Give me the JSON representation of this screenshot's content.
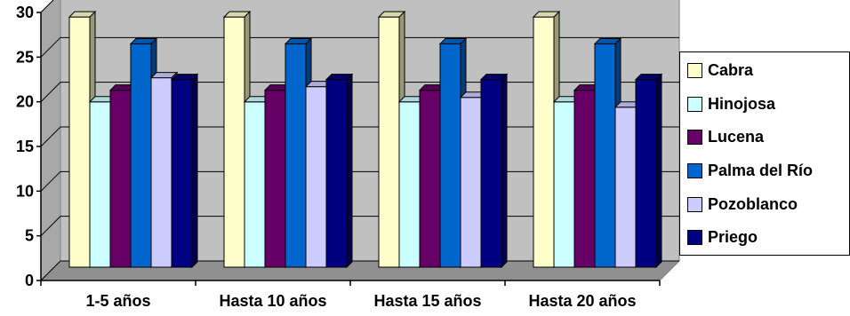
{
  "chart_data": {
    "type": "bar",
    "categories": [
      "1-5 años",
      "Hasta 10 años",
      "Hasta 15 años",
      "Hasta 20 años"
    ],
    "series": [
      {
        "name": "Cabra",
        "color": "#ffffcc",
        "values": [
          28,
          28,
          28,
          28
        ]
      },
      {
        "name": "Hinojosa",
        "color": "#ccffff",
        "values": [
          18.5,
          18.5,
          18.5,
          18.5
        ]
      },
      {
        "name": "Lucena",
        "color": "#660066",
        "values": [
          19.8,
          19.8,
          19.8,
          19.8
        ]
      },
      {
        "name": "Palma del Río",
        "color": "#0066cc",
        "values": [
          25,
          25,
          25,
          25
        ]
      },
      {
        "name": "Pozoblanco",
        "color": "#ccccff",
        "values": [
          21.2,
          20.2,
          19,
          17.9
        ]
      },
      {
        "name": "Priego",
        "color": "#000080",
        "values": [
          21,
          21,
          21,
          21
        ]
      }
    ],
    "ylim": [
      0,
      30
    ],
    "yticks": [
      "0",
      "5",
      "10",
      "15",
      "20",
      "25",
      "30"
    ],
    "grid": true,
    "legend_position": "right",
    "plot_background": "#c0c0c0",
    "three_d": true
  }
}
